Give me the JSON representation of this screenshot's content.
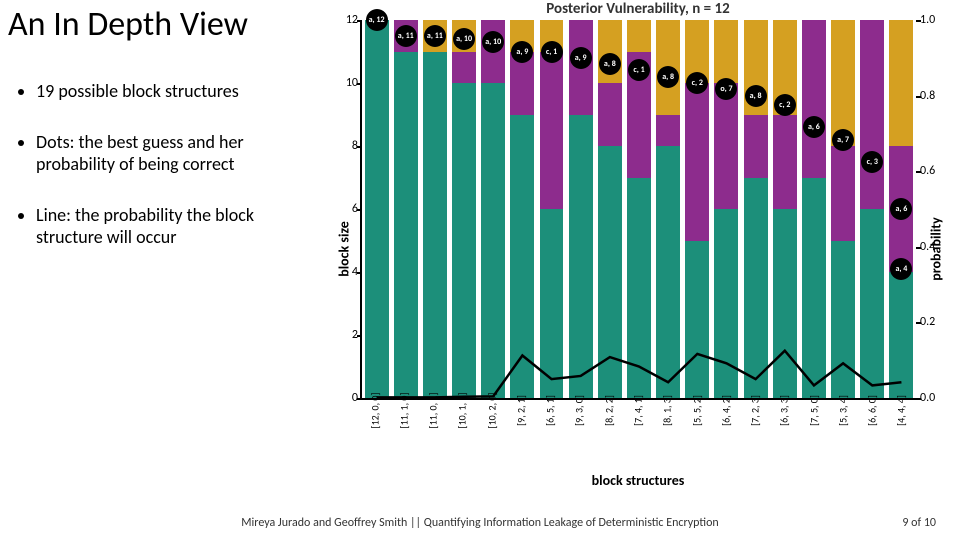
{
  "title": "An In Depth View",
  "bullets": [
    "19 possible block structures",
    "Dots: the best guess and her probability of being correct",
    "Line: the probability the block structure will occur"
  ],
  "chart": {
    "type": "stacked-bar-with-line",
    "title": "Posterior Vulnerability, n = 12",
    "title_fontsize": 15,
    "xlabel": "block structures",
    "ylabel": "block size",
    "y2label": "probability",
    "label_fontsize": 14,
    "ylim": [
      0,
      12
    ],
    "ytick_step": 2,
    "y2lim": [
      0,
      1.0
    ],
    "y2tick_step": 0.2,
    "background_color": "#ffffff",
    "grid_color": "#e0e0e0",
    "bar_width": 0.82,
    "seg_colors": {
      "a": "#1c8f7a",
      "b": "#8d2c8d",
      "c": "#d5a021"
    },
    "line_color": "#000000",
    "line_width": 2.5,
    "dot_color": "#000000",
    "dot_text_color": "#ffffff",
    "categories": [
      "[12, 0, 0]",
      "[11, 1, 0]",
      "[11, 0, 1]",
      "[10, 1, 1]",
      "[10, 2, 0]",
      "[9, 2, 1]",
      "[6, 5, 1]",
      "[9, 3, 0]",
      "[8, 2, 2]",
      "[7, 4, 1]",
      "[8, 1, 3]",
      "[5, 5, 2]",
      "[6, 4, 2]",
      "[7, 2, 3]",
      "[6, 3, 3]",
      "[7, 5, 0]",
      "[5, 3, 4]",
      "[6, 6, 0]",
      "[4, 4, 4]"
    ],
    "stacks": [
      {
        "a": 12,
        "b": 0,
        "c": 0
      },
      {
        "a": 11,
        "b": 1,
        "c": 0
      },
      {
        "a": 11,
        "b": 0,
        "c": 1
      },
      {
        "a": 10,
        "b": 1,
        "c": 1
      },
      {
        "a": 10,
        "b": 2,
        "c": 0
      },
      {
        "a": 9,
        "b": 2,
        "c": 1
      },
      {
        "a": 6,
        "b": 5,
        "c": 1
      },
      {
        "a": 9,
        "b": 3,
        "c": 0
      },
      {
        "a": 8,
        "b": 2,
        "c": 2
      },
      {
        "a": 7,
        "b": 4,
        "c": 1
      },
      {
        "a": 8,
        "b": 1,
        "c": 3
      },
      {
        "a": 5,
        "b": 5,
        "c": 2
      },
      {
        "a": 6,
        "b": 4,
        "c": 2
      },
      {
        "a": 7,
        "b": 2,
        "c": 3
      },
      {
        "a": 6,
        "b": 3,
        "c": 3
      },
      {
        "a": 7,
        "b": 5,
        "c": 0
      },
      {
        "a": 5,
        "b": 3,
        "c": 4
      },
      {
        "a": 6,
        "b": 6,
        "c": 0
      },
      {
        "a": 4,
        "b": 4,
        "c": 4
      }
    ],
    "dots": [
      {
        "label": "a, 12",
        "y": 12
      },
      {
        "label": "a, 11",
        "y": 11.5
      },
      {
        "label": "a, 11",
        "y": 11.5
      },
      {
        "label": "a, 10",
        "y": 11.4
      },
      {
        "label": "a, 10",
        "y": 11.3
      },
      {
        "label": "a, 9",
        "y": 11.0
      },
      {
        "label": "c, 1",
        "y": 11.0
      },
      {
        "label": "a, 9",
        "y": 10.8
      },
      {
        "label": "a, 8",
        "y": 10.6
      },
      {
        "label": "c, 1",
        "y": 10.4
      },
      {
        "label": "a, 8",
        "y": 10.2
      },
      {
        "label": "c, 2",
        "y": 10.0
      },
      {
        "label": "o, 7",
        "y": 9.8
      },
      {
        "label": "a, 8",
        "y": 9.6
      },
      {
        "label": "c, 2",
        "y": 9.3
      },
      {
        "label": "a, 6",
        "y": 8.6
      },
      {
        "label": "a, 7",
        "y": 8.2
      },
      {
        "label": "c, 3",
        "y": 7.5
      },
      {
        "label": "a, 6",
        "y": 6.0
      }
    ],
    "dots_extra": [
      {
        "i": 18,
        "label": "a, 4",
        "y": 4.1
      }
    ],
    "line_values": [
      0.02,
      0.02,
      0.02,
      0.04,
      0.05,
      1.35,
      0.6,
      0.7,
      1.3,
      1.0,
      0.5,
      1.4,
      1.1,
      0.6,
      1.5,
      0.4,
      1.1,
      0.4,
      0.5
    ]
  },
  "footer": "Mireya Jurado and Geoffrey Smith || Quantifying Information Leakage of Deterministic Encryption",
  "pager": {
    "current": 9,
    "total": 10,
    "sep": " of "
  }
}
